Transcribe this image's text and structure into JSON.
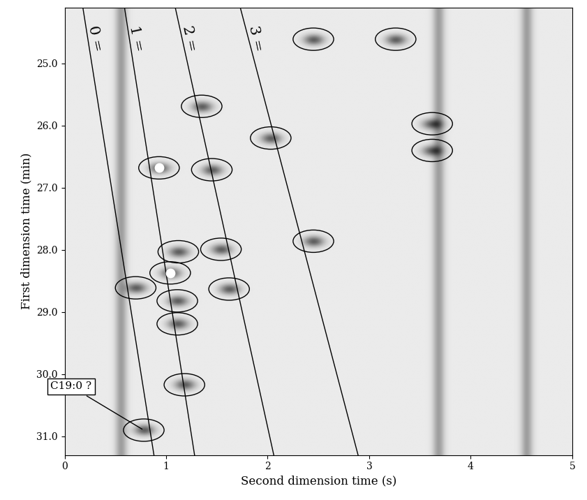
{
  "chart_data": {
    "type": "scatter",
    "x_label": "Second dimension time (s)",
    "y_label": "First dimension time (min)",
    "xlim": [
      0,
      5
    ],
    "ylim": [
      31.3,
      24.1
    ],
    "xticks": [
      0,
      1,
      2,
      3,
      4,
      5
    ],
    "yticks": [
      {
        "value": 25,
        "label": "25.0"
      },
      {
        "value": 26,
        "label": "26.0"
      },
      {
        "value": 27,
        "label": "27.0"
      },
      {
        "value": 28,
        "label": "28.0"
      },
      {
        "value": 29,
        "label": "29.0"
      },
      {
        "value": 30,
        "label": "30.0"
      },
      {
        "value": 31,
        "label": "31.0"
      }
    ],
    "bands": [
      0.55,
      3.68,
      4.55
    ],
    "spots": [
      {
        "x": 2.45,
        "y": 24.61,
        "saturated": false
      },
      {
        "x": 3.26,
        "y": 24.61,
        "saturated": false
      },
      {
        "x": 1.35,
        "y": 25.69,
        "saturated": false
      },
      {
        "x": 3.62,
        "y": 25.97,
        "saturated": false
      },
      {
        "x": 2.03,
        "y": 26.2,
        "saturated": false
      },
      {
        "x": 3.62,
        "y": 26.4,
        "saturated": false
      },
      {
        "x": 0.93,
        "y": 26.68,
        "saturated": true
      },
      {
        "x": 1.45,
        "y": 26.71,
        "saturated": false
      },
      {
        "x": 1.12,
        "y": 28.03,
        "saturated": false
      },
      {
        "x": 1.54,
        "y": 27.99,
        "saturated": false
      },
      {
        "x": 2.45,
        "y": 27.86,
        "saturated": false
      },
      {
        "x": 1.04,
        "y": 28.37,
        "saturated": true
      },
      {
        "x": 0.7,
        "y": 28.61,
        "saturated": false
      },
      {
        "x": 1.62,
        "y": 28.63,
        "saturated": false
      },
      {
        "x": 1.11,
        "y": 28.82,
        "saturated": false
      },
      {
        "x": 1.11,
        "y": 29.19,
        "saturated": false
      },
      {
        "x": 1.18,
        "y": 30.17,
        "saturated": false
      },
      {
        "x": 0.78,
        "y": 30.9,
        "saturated": false
      }
    ],
    "lines": [
      {
        "name": "0 =",
        "x": [
          0.18,
          0.88
        ],
        "y": [
          24.1,
          31.3
        ]
      },
      {
        "name": "1 =",
        "x": [
          0.59,
          1.28
        ],
        "y": [
          24.1,
          31.3
        ]
      },
      {
        "name": "2 =",
        "x": [
          1.09,
          2.06
        ],
        "y": [
          24.1,
          31.3
        ]
      },
      {
        "name": "3 =",
        "x": [
          1.73,
          2.89
        ],
        "y": [
          24.1,
          31.3
        ]
      }
    ],
    "annotation": {
      "text": "C19:0 ?",
      "x": 0.78,
      "y": 30.9
    }
  }
}
